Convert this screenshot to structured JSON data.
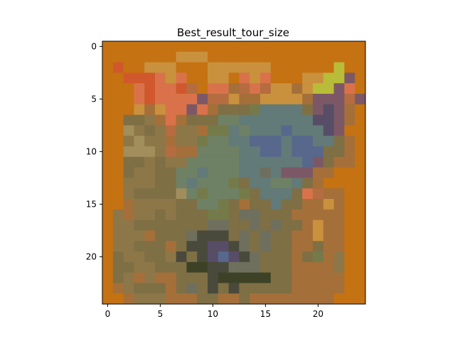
{
  "chart_data": {
    "type": "heatmap",
    "title": "Best_result_tour_size",
    "xlabel": "",
    "ylabel": "",
    "x_ticks": [
      "0",
      "5",
      "10",
      "15",
      "20"
    ],
    "y_ticks": [
      "0",
      "5",
      "10",
      "15",
      "20"
    ],
    "xlim": [
      -0.5,
      24.5
    ],
    "ylim": [
      24.5,
      -0.5
    ],
    "grid": false,
    "rows": 25,
    "cols": 25,
    "palette": {
      "O": "#c57212",
      "R": "#d1582c",
      "S": "#d9724a",
      "L": "#c9913d",
      "Y": "#b9bc38",
      "P": "#7c5866",
      "B": "#7f6f45",
      "G": "#6f8164",
      "T": "#627a78",
      "U": "#57688c",
      "N": "#574d66",
      "K": "#4a4a3c",
      "D": "#3d4226",
      "A": "#8d7748",
      "M": "#a56f3a",
      "V": "#757a4a",
      "Q": "#6f6f5e",
      "C": "#b46c40",
      "H": "#a28d5d",
      "E": "#c96c40"
    },
    "pixels": [
      "OOOOOOOOOOOOOOOOOOOOOOOOO",
      "OOOOOOOLLLOOOOOOOOOOOOOOO",
      "OROOLLLOOOLLLLLLOOOOOOYOO",
      "OORRRSLSOOLLOSLSOOOLLYYPO",
      "OOOSRSSRCOSSMCSCLLMLYYPSO",
      "OOOSRSSSSPCCLMMLLLLMPPPCP",
      "OOOLMLSSPSMBBBVTTTTBPNPMO",
      "OOBBAMSMBBBGGTTTTTTTNNPMO",
      "OOHABACAAMVVTGTTTUTTTNPOO",
      "OOAHAAMAAVGGTTUUUTUUTTBMO",
      "OOHHHACMMGGGGTTUUTUUUBBMO",
      "OOBBABAAGGGGGTTTTTTUPBMMO",
      "OOBAABBGGTGGGTTQTPPPMMOOO",
      "OOAAABBGTGGGVBTTGGTBMOOOO",
      "OOABBBBHGVGGGVBTTTBSCMMOO",
      "OOMAAAABBGGVBMBBTBBMMLMOO",
      "OAMAABABBBVVBQQBBBMMMMMOO",
      "OAABBBBBBBQQBBQBQBBMLMMOO",
      "OAAAMBBBQKKKBQBQBBMMLMMOO",
      "OAABBBMBKKNNKQBQBBMMBMMOO",
      "OBAABBAKBKNUNKQBBBMBVMAOO",
      "OBBAABBBDDKKQQQBBBMMMMAOO",
      "OBAMAMMBBBKDDDDDBBMMMMMOO",
      "OMABBBMBQBKBKBBBBBMMMMMOO",
      "OOMAAAMMMBBMMBMMMMMMMMOOO"
    ]
  }
}
